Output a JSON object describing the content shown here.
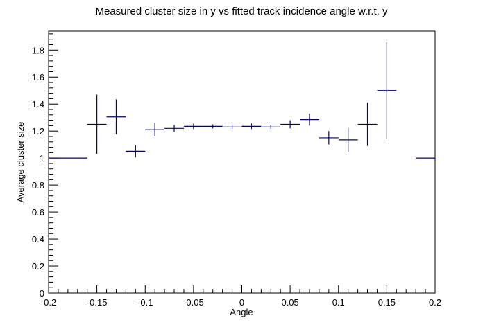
{
  "chart_data": {
    "type": "scatter",
    "title": "Measured cluster size in y vs fitted track incidence angle w.r.t. y",
    "xlabel": "Angle",
    "ylabel": "Average cluster size",
    "xlim": [
      -0.2,
      0.2
    ],
    "ylim": [
      0,
      1.94
    ],
    "x_ticks": [
      "-0.2",
      "-0.15",
      "-0.1",
      "-0.05",
      "0",
      "0.05",
      "0.1",
      "0.15",
      "0.2"
    ],
    "y_ticks": [
      "0",
      "0.2",
      "0.4",
      "0.6",
      "0.8",
      "1",
      "1.2",
      "1.4",
      "1.6",
      "1.8"
    ],
    "x_tick_values": [
      -0.2,
      -0.15,
      -0.1,
      -0.05,
      0,
      0.05,
      0.1,
      0.15,
      0.2
    ],
    "y_tick_values": [
      0,
      0.2,
      0.4,
      0.6,
      0.8,
      1.0,
      1.2,
      1.4,
      1.6,
      1.8
    ],
    "grid": false,
    "marker_color": "#000080",
    "points": [
      {
        "x": -0.18,
        "y": 1.0,
        "xerr": 0.02,
        "yerr": 0.0
      },
      {
        "x": -0.15,
        "y": 1.25,
        "xerr": 0.01,
        "yerr": 0.22
      },
      {
        "x": -0.13,
        "y": 1.305,
        "xerr": 0.01,
        "yerr": 0.13
      },
      {
        "x": -0.11,
        "y": 1.05,
        "xerr": 0.01,
        "yerr": 0.045
      },
      {
        "x": -0.09,
        "y": 1.21,
        "xerr": 0.01,
        "yerr": 0.05
      },
      {
        "x": -0.07,
        "y": 1.22,
        "xerr": 0.01,
        "yerr": 0.025
      },
      {
        "x": -0.05,
        "y": 1.235,
        "xerr": 0.01,
        "yerr": 0.02
      },
      {
        "x": -0.03,
        "y": 1.235,
        "xerr": 0.01,
        "yerr": 0.015
      },
      {
        "x": -0.01,
        "y": 1.23,
        "xerr": 0.01,
        "yerr": 0.015
      },
      {
        "x": 0.01,
        "y": 1.235,
        "xerr": 0.01,
        "yerr": 0.02
      },
      {
        "x": 0.03,
        "y": 1.23,
        "xerr": 0.01,
        "yerr": 0.015
      },
      {
        "x": 0.05,
        "y": 1.25,
        "xerr": 0.01,
        "yerr": 0.03
      },
      {
        "x": 0.07,
        "y": 1.285,
        "xerr": 0.01,
        "yerr": 0.045
      },
      {
        "x": 0.09,
        "y": 1.15,
        "xerr": 0.01,
        "yerr": 0.05
      },
      {
        "x": 0.11,
        "y": 1.135,
        "xerr": 0.01,
        "yerr": 0.09
      },
      {
        "x": 0.13,
        "y": 1.25,
        "xerr": 0.01,
        "yerr": 0.16
      },
      {
        "x": 0.15,
        "y": 1.5,
        "xerr": 0.01,
        "yerr": 0.36
      },
      {
        "x": 0.19,
        "y": 1.0,
        "xerr": 0.01,
        "yerr": 0.0
      }
    ]
  }
}
